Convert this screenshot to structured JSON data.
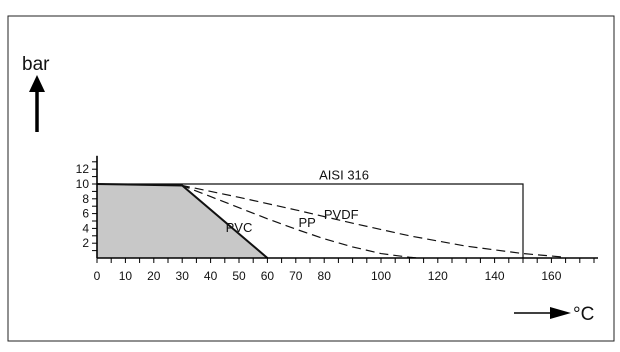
{
  "chart_data": {
    "type": "line",
    "title": "",
    "xlabel": "°C",
    "ylabel": "bar",
    "xlim": [
      0,
      175
    ],
    "ylim": [
      0,
      13
    ],
    "x_ticks": [
      0,
      10,
      20,
      30,
      40,
      50,
      60,
      70,
      80,
      100,
      120,
      140,
      160
    ],
    "x_minor_ticks": [
      0,
      5,
      10,
      15,
      20,
      25,
      30,
      35,
      40,
      45,
      50,
      55,
      60,
      65,
      70,
      75,
      80,
      85,
      90,
      95,
      100,
      105,
      110,
      115,
      120,
      125,
      130,
      135,
      140,
      145,
      150,
      155,
      160,
      165,
      170,
      175
    ],
    "y_ticks": [
      2,
      4,
      6,
      8,
      10,
      12
    ],
    "y_minor_ticks": [
      1,
      2,
      3,
      4,
      5,
      6,
      7,
      8,
      9,
      10,
      11,
      12,
      13
    ],
    "grid": false,
    "series": [
      {
        "name": "AISI 316",
        "style": "solid",
        "color": "#111111",
        "x": [
          0,
          150,
          150
        ],
        "y": [
          10,
          10,
          0
        ]
      },
      {
        "name": "PVC",
        "style": "solid",
        "color": "#111111",
        "fill": "#c8c8c8",
        "x": [
          0,
          30,
          60
        ],
        "y": [
          10,
          9.8,
          0
        ]
      },
      {
        "name": "PP",
        "style": "dashed",
        "color": "#111111",
        "x": [
          0,
          30,
          40,
          50,
          60,
          70,
          80,
          90,
          100,
          110,
          113
        ],
        "y": [
          10,
          9.8,
          8.3,
          6.8,
          5.3,
          3.9,
          2.6,
          1.5,
          0.6,
          0.1,
          0
        ]
      },
      {
        "name": "PVDF",
        "style": "dashed",
        "color": "#111111",
        "x": [
          0,
          30,
          50,
          70,
          90,
          110,
          130,
          150,
          165
        ],
        "y": [
          10,
          9.8,
          8.2,
          6.5,
          4.7,
          3.0,
          1.6,
          0.6,
          0.1
        ]
      }
    ],
    "labels": [
      {
        "text": "AISI 316",
        "x": 87,
        "y": 10.6
      },
      {
        "text": "PVDF",
        "x": 86,
        "y": 5.3
      },
      {
        "text": "PP",
        "x": 74,
        "y": 4.2
      },
      {
        "text": "PVC",
        "x": 50,
        "y": 3.5
      }
    ]
  }
}
